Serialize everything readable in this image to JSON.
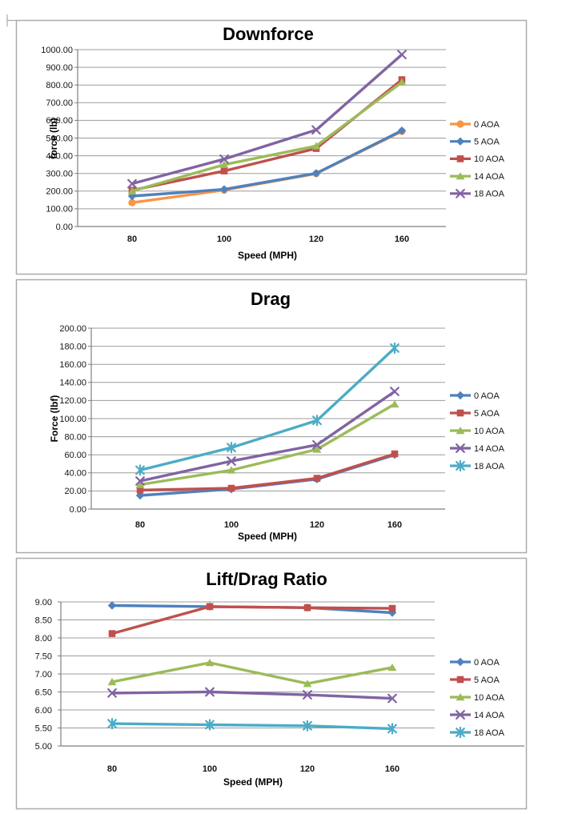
{
  "page": {
    "background": "#ffffff"
  },
  "style": {
    "gridline_color": "#9C9C9C",
    "axis_color": "#7F7F7F",
    "panel_border_color": "#ABABAB",
    "panel_fill": "#FFFFFF",
    "text_color": "#000000"
  },
  "chart_data": [
    {
      "type": "line",
      "title": "Downforce",
      "xlabel": "Speed (MPH)",
      "ylabel": "force (lb)",
      "categories": [
        "80",
        "100",
        "120",
        "160"
      ],
      "ylim": [
        0,
        1000
      ],
      "ytick_step": 100,
      "grid": true,
      "legend_position": "right",
      "series": [
        {
          "name": "0 AOA",
          "color": "#F79646",
          "marker": "circle",
          "values": [
            135,
            206,
            299,
            538
          ]
        },
        {
          "name": "5 AOA",
          "color": "#4F81BD",
          "marker": "diamond",
          "values": [
            172,
            210,
            301,
            542
          ]
        },
        {
          "name": "10 AOA",
          "color": "#C0504D",
          "marker": "square",
          "values": [
            205,
            314,
            441,
            830
          ]
        },
        {
          "name": "14 AOA",
          "color": "#9BBB59",
          "marker": "triangle",
          "values": [
            200,
            350,
            455,
            816
          ]
        },
        {
          "name": "18 AOA",
          "color": "#8064A2",
          "marker": "x",
          "values": [
            242,
            381,
            546,
            972
          ]
        }
      ]
    },
    {
      "type": "line",
      "title": "Drag",
      "xlabel": "Speed (MPH)",
      "ylabel": "Force (lbf)",
      "categories": [
        "80",
        "100",
        "120",
        "160"
      ],
      "ylim": [
        0,
        200
      ],
      "ytick_step": 20,
      "grid": true,
      "legend_position": "right",
      "series": [
        {
          "name": "0 AOA",
          "color": "#4F81BD",
          "marker": "diamond",
          "values": [
            15,
            22,
            33,
            60
          ]
        },
        {
          "name": "5 AOA",
          "color": "#C0504D",
          "marker": "square",
          "values": [
            21,
            23,
            34,
            61
          ]
        },
        {
          "name": "10 AOA",
          "color": "#9BBB59",
          "marker": "triangle",
          "values": [
            27,
            43,
            66,
            116
          ]
        },
        {
          "name": "14 AOA",
          "color": "#8064A2",
          "marker": "x",
          "values": [
            31,
            53,
            71,
            130
          ]
        },
        {
          "name": "18 AOA",
          "color": "#4BACC6",
          "marker": "asterisk",
          "values": [
            43,
            68,
            98,
            178
          ]
        }
      ]
    },
    {
      "type": "line",
      "title": "Lift/Drag Ratio",
      "xlabel": "Speed (MPH)",
      "ylabel": "",
      "categories": [
        "80",
        "100",
        "120",
        "160"
      ],
      "ylim": [
        5,
        9
      ],
      "ytick_step": 0.5,
      "grid": true,
      "legend_position": "right",
      "series": [
        {
          "name": "0 AOA",
          "color": "#4F81BD",
          "marker": "diamond",
          "values": [
            8.9,
            8.87,
            8.84,
            8.7
          ]
        },
        {
          "name": "5 AOA",
          "color": "#C0504D",
          "marker": "square",
          "values": [
            8.12,
            8.87,
            8.84,
            8.82
          ]
        },
        {
          "name": "10 AOA",
          "color": "#9BBB59",
          "marker": "triangle",
          "values": [
            6.78,
            7.31,
            6.73,
            7.18
          ]
        },
        {
          "name": "14 AOA",
          "color": "#8064A2",
          "marker": "x",
          "values": [
            6.47,
            6.5,
            6.42,
            6.32
          ]
        },
        {
          "name": "18 AOA",
          "color": "#4BACC6",
          "marker": "asterisk",
          "values": [
            5.62,
            5.59,
            5.56,
            5.48
          ]
        }
      ]
    }
  ]
}
